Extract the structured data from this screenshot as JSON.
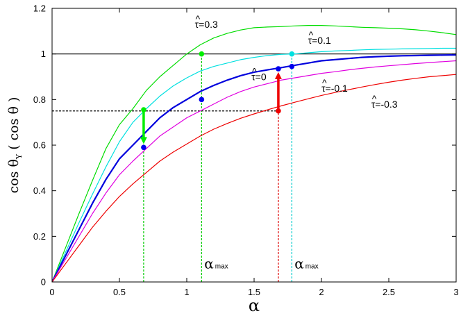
{
  "chart_data": {
    "type": "line",
    "xlabel": "α",
    "ylabel": {
      "main": "cos θ",
      "sub": "Y",
      "paren": " ( cos θ )"
    },
    "xlim": [
      0,
      3
    ],
    "ylim": [
      0,
      1.2
    ],
    "xticks": [
      {
        "v": 0,
        "label": "0"
      },
      {
        "v": 0.5,
        "label": "0.5"
      },
      {
        "v": 1,
        "label": "1"
      },
      {
        "v": 1.5,
        "label": "1.5"
      },
      {
        "v": 2,
        "label": "2"
      },
      {
        "v": 2.5,
        "label": "2.5"
      },
      {
        "v": 3,
        "label": "3"
      }
    ],
    "yticks": [
      {
        "v": 0,
        "label": "0"
      },
      {
        "v": 0.2,
        "label": "0.2"
      },
      {
        "v": 0.4,
        "label": "0.4"
      },
      {
        "v": 0.6,
        "label": "0.6"
      },
      {
        "v": 0.8,
        "label": "0.8"
      },
      {
        "v": 1,
        "label": "1"
      },
      {
        "v": 1.2,
        "label": "1.2"
      }
    ],
    "x": [
      0,
      0.1,
      0.2,
      0.3,
      0.4,
      0.5,
      0.6,
      0.7,
      0.8,
      0.9,
      1.0,
      1.1,
      1.2,
      1.3,
      1.4,
      1.5,
      1.6,
      1.7,
      1.8,
      1.9,
      2.0,
      2.1,
      2.2,
      2.3,
      2.4,
      2.5,
      2.6,
      2.7,
      2.8,
      2.9,
      3.0
    ],
    "series": [
      {
        "id": "tau_p03",
        "color": "#00dd00",
        "width": 1.2,
        "values": [
          0,
          0.15,
          0.3,
          0.445,
          0.585,
          0.69,
          0.76,
          0.84,
          0.9,
          0.95,
          1.0,
          1.04,
          1.07,
          1.09,
          1.105,
          1.115,
          1.118,
          1.12,
          1.123,
          1.125,
          1.125,
          1.123,
          1.12,
          1.117,
          1.115,
          1.113,
          1.11,
          1.106,
          1.1,
          1.093,
          1.085
        ]
      },
      {
        "id": "tau_p01",
        "color": "#00e0e0",
        "width": 1.2,
        "values": [
          0,
          0.13,
          0.26,
          0.385,
          0.505,
          0.615,
          0.7,
          0.76,
          0.815,
          0.86,
          0.895,
          0.925,
          0.945,
          0.96,
          0.975,
          0.985,
          0.993,
          0.998,
          1.0,
          1.005,
          1.01,
          1.013,
          1.015,
          1.018,
          1.02,
          1.021,
          1.022,
          1.023,
          1.024,
          1.025,
          1.025
        ]
      },
      {
        "id": "tau_0",
        "color": "#0000dd",
        "width": 2.2,
        "values": [
          0,
          0.115,
          0.23,
          0.345,
          0.45,
          0.54,
          0.6,
          0.66,
          0.72,
          0.765,
          0.8,
          0.835,
          0.862,
          0.885,
          0.905,
          0.92,
          0.93,
          0.94,
          0.95,
          0.96,
          0.97,
          0.975,
          0.98,
          0.985,
          0.988,
          0.99,
          0.992,
          0.993,
          0.994,
          0.995,
          0.996
        ]
      },
      {
        "id": "tau_m01",
        "color": "#e000e0",
        "width": 1.2,
        "values": [
          0,
          0.1,
          0.2,
          0.3,
          0.39,
          0.47,
          0.53,
          0.585,
          0.64,
          0.68,
          0.72,
          0.75,
          0.78,
          0.81,
          0.835,
          0.855,
          0.87,
          0.885,
          0.895,
          0.905,
          0.915,
          0.922,
          0.93,
          0.937,
          0.943,
          0.948,
          0.953,
          0.958,
          0.962,
          0.966,
          0.97
        ]
      },
      {
        "id": "tau_m03",
        "color": "#ee0000",
        "width": 1.2,
        "values": [
          0,
          0.08,
          0.16,
          0.24,
          0.31,
          0.375,
          0.43,
          0.48,
          0.53,
          0.57,
          0.605,
          0.64,
          0.67,
          0.695,
          0.718,
          0.737,
          0.755,
          0.772,
          0.788,
          0.803,
          0.818,
          0.831,
          0.843,
          0.855,
          0.866,
          0.876,
          0.885,
          0.893,
          0.9,
          0.905,
          0.91
        ]
      }
    ],
    "ref_lines": [
      {
        "id": "hline-1",
        "type": "h",
        "y": 1.0,
        "x0": 0,
        "x1": 3,
        "color": "#000000",
        "dash": false,
        "width": 1.2
      },
      {
        "id": "hline-075",
        "type": "h",
        "y": 0.75,
        "x0": 0,
        "x1": 1.68,
        "color": "#000000",
        "dash": true,
        "width": 1.2
      },
      {
        "id": "vline-green-068",
        "type": "v",
        "x": 0.68,
        "y0": 0,
        "y1": 0.755,
        "color": "#00cc00",
        "dash": true,
        "width": 1.2
      },
      {
        "id": "vline-green-111",
        "type": "v",
        "x": 1.11,
        "y0": 0,
        "y1": 1.0,
        "color": "#00cc00",
        "dash": true,
        "width": 1.2
      },
      {
        "id": "vline-red-168",
        "type": "v",
        "x": 1.68,
        "y0": 0,
        "y1": 0.75,
        "color": "#dd0000",
        "dash": true,
        "width": 1.2
      },
      {
        "id": "vline-cyan-178",
        "type": "v",
        "x": 1.78,
        "y0": 0,
        "y1": 1.0,
        "color": "#00cccc",
        "dash": true,
        "width": 1.2
      }
    ],
    "points": [
      {
        "x": 0.68,
        "y": 0.755,
        "color": "#00ee00"
      },
      {
        "x": 0.68,
        "y": 0.59,
        "color": "#0000ee"
      },
      {
        "x": 1.11,
        "y": 1.0,
        "color": "#00ee00"
      },
      {
        "x": 1.11,
        "y": 0.8,
        "color": "#0000ee"
      },
      {
        "x": 1.68,
        "y": 0.75,
        "color": "#ee0000"
      },
      {
        "x": 1.68,
        "y": 0.935,
        "color": "#0000ee"
      },
      {
        "x": 1.78,
        "y": 0.945,
        "color": "#0000ee"
      },
      {
        "x": 1.78,
        "y": 1.0,
        "color": "#00e0e0"
      }
    ],
    "arrows": [
      {
        "id": "green-arrow",
        "x": 0.68,
        "y_from": 0.745,
        "y_to": 0.605,
        "color": "#00ee00"
      },
      {
        "id": "red-arrow",
        "x": 1.68,
        "y_from": 0.76,
        "y_to": 0.92,
        "color": "#ee0000"
      }
    ],
    "annotations": [
      {
        "id": "label-tau-p03",
        "text": "τ=0.3",
        "x": 1.06,
        "y": 1.115
      },
      {
        "id": "label-tau-p01",
        "text": "τ=0.1",
        "x": 1.9,
        "y": 1.045
      },
      {
        "id": "label-tau-0",
        "text": "τ=0",
        "x": 1.48,
        "y": 0.885
      },
      {
        "id": "label-tau-m01",
        "text": "τ=-0.1",
        "x": 2.0,
        "y": 0.835
      },
      {
        "id": "label-tau-m03",
        "text": "τ=-0.3",
        "x": 2.37,
        "y": 0.765
      }
    ],
    "amax_labels": [
      {
        "id": "amax-1",
        "main": "α",
        "sub": "max",
        "x": 1.13,
        "y": 0.06
      },
      {
        "id": "amax-2",
        "main": "α",
        "sub": "max",
        "x": 1.8,
        "y": 0.06
      }
    ]
  }
}
